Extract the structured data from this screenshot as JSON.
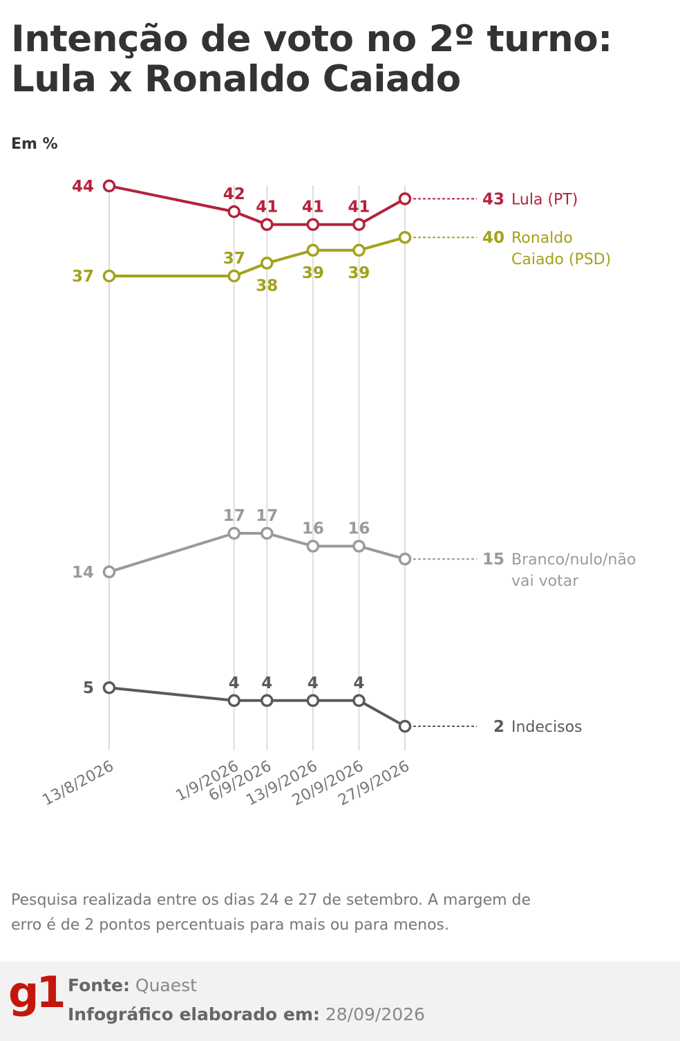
{
  "title": "Intenção de voto no 2º turno: Lula x Ronaldo Caiado",
  "unit": "Em %",
  "chart_data": {
    "type": "line",
    "x": [
      "13/8/2026",
      "1/9/2026",
      "6/9/2026",
      "13/9/2026",
      "20/9/2026",
      "27/9/2026"
    ],
    "series": [
      {
        "name": "Lula (PT)",
        "color": "#b5213b",
        "values": [
          44,
          42,
          41,
          41,
          41,
          43
        ]
      },
      {
        "name": "Ronaldo Caiado (PSD)",
        "color": "#a3a11a",
        "values": [
          37,
          37,
          38,
          39,
          39,
          40
        ]
      },
      {
        "name": "Branco/nulo/não vai votar",
        "color": "#9a9a9a",
        "values": [
          14,
          17,
          17,
          16,
          16,
          15
        ]
      },
      {
        "name": "Indecisos",
        "color": "#5a5a5a",
        "values": [
          5,
          4,
          4,
          4,
          4,
          2
        ]
      }
    ],
    "ylabel": "Em %",
    "grid": true,
    "legend": "right"
  },
  "note": "Pesquisa realizada entre os dias 24 e 27 de setembro. A margem de erro é de 2 pontos percentuais para mais ou para menos.",
  "footer": {
    "logo": "g1",
    "source_label": "Fonte:",
    "source_value": "Quaest",
    "made_label": "Infográfico elaborado em:",
    "made_value": "28/09/2026"
  }
}
